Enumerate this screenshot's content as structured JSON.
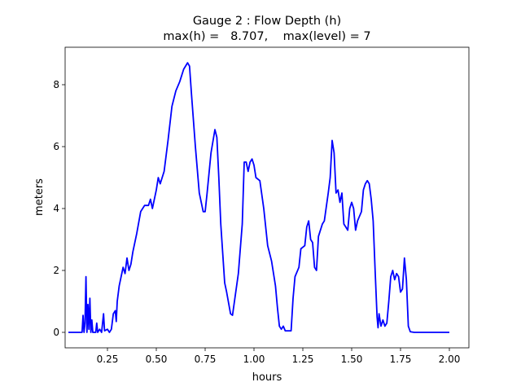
{
  "chart_data": {
    "type": "line",
    "title": "Gauge 2 : Flow Depth (h)",
    "subtitle": "max(h) =   8.707,    max(level) = 7",
    "xlabel": "hours",
    "ylabel": "meters",
    "color": "#0000ff",
    "xlim": [
      0.0333,
      2.1
    ],
    "ylim": [
      -0.5,
      9.21
    ],
    "xticks": [
      0.25,
      {
        "value": 0.5,
        "label": "0.50"
      },
      0.75,
      {
        "value": 1.0,
        "label": "1.00"
      },
      1.25,
      {
        "value": 1.5,
        "label": "1.50"
      },
      1.75,
      {
        "value": 2.0,
        "label": "2.00"
      }
    ],
    "yticks": [
      0,
      2,
      4,
      6,
      8
    ],
    "x": [
      0.05,
      0.12,
      0.125,
      0.13,
      0.135,
      0.14,
      0.145,
      0.15,
      0.155,
      0.16,
      0.165,
      0.17,
      0.175,
      0.19,
      0.195,
      0.2,
      0.21,
      0.22,
      0.23,
      0.235,
      0.25,
      0.26,
      0.27,
      0.28,
      0.29,
      0.295,
      0.3,
      0.31,
      0.32,
      0.33,
      0.34,
      0.35,
      0.36,
      0.37,
      0.38,
      0.4,
      0.42,
      0.44,
      0.46,
      0.47,
      0.48,
      0.5,
      0.51,
      0.52,
      0.54,
      0.56,
      0.58,
      0.6,
      0.62,
      0.64,
      0.66,
      0.67,
      0.68,
      0.7,
      0.72,
      0.74,
      0.75,
      0.76,
      0.78,
      0.8,
      0.81,
      0.82,
      0.83,
      0.85,
      0.86,
      0.88,
      0.89,
      0.9,
      0.92,
      0.94,
      0.95,
      0.96,
      0.97,
      0.98,
      0.99,
      1.0,
      1.01,
      1.03,
      1.05,
      1.07,
      1.09,
      1.11,
      1.12,
      1.13,
      1.14,
      1.15,
      1.16,
      1.19,
      1.2,
      1.21,
      1.23,
      1.24,
      1.26,
      1.27,
      1.28,
      1.29,
      1.3,
      1.31,
      1.32,
      1.33,
      1.35,
      1.36,
      1.38,
      1.39,
      1.4,
      1.41,
      1.42,
      1.43,
      1.44,
      1.45,
      1.46,
      1.47,
      1.48,
      1.49,
      1.5,
      1.51,
      1.52,
      1.53,
      1.55,
      1.56,
      1.57,
      1.58,
      1.59,
      1.6,
      1.61,
      1.62,
      1.63,
      1.635,
      1.64,
      1.65,
      1.66,
      1.67,
      1.68,
      1.69,
      1.7,
      1.71,
      1.72,
      1.73,
      1.74,
      1.75,
      1.76,
      1.77,
      1.78,
      1.79,
      1.8,
      1.82,
      2.0
    ],
    "values": [
      0,
      0,
      0.55,
      0,
      0.3,
      1.8,
      0,
      0.9,
      0.1,
      1.1,
      0,
      0.4,
      0,
      0,
      0.3,
      0,
      0.1,
      0,
      0.6,
      0.05,
      0.1,
      0,
      0.1,
      0.6,
      0.7,
      0.35,
      1.0,
      1.5,
      1.8,
      2.1,
      1.9,
      2.4,
      2.0,
      2.2,
      2.6,
      3.2,
      3.9,
      4.1,
      4.1,
      4.3,
      4.0,
      4.6,
      5.0,
      4.8,
      5.2,
      6.2,
      7.3,
      7.8,
      8.1,
      8.5,
      8.707,
      8.6,
      7.7,
      6.0,
      4.5,
      3.9,
      3.9,
      4.5,
      5.8,
      6.55,
      6.3,
      5.0,
      3.5,
      1.6,
      1.3,
      0.6,
      0.55,
      1.0,
      1.9,
      3.5,
      5.5,
      5.5,
      5.2,
      5.5,
      5.6,
      5.4,
      5.0,
      4.9,
      4.0,
      2.8,
      2.3,
      1.5,
      0.8,
      0.2,
      0.1,
      0.2,
      0.05,
      0.05,
      1.1,
      1.8,
      2.1,
      2.7,
      2.8,
      3.4,
      3.6,
      3.0,
      2.9,
      2.1,
      2.0,
      3.1,
      3.5,
      3.6,
      4.5,
      5.0,
      6.2,
      5.8,
      4.5,
      4.6,
      4.2,
      4.5,
      3.5,
      3.4,
      3.3,
      4.0,
      4.2,
      4.0,
      3.3,
      3.6,
      3.9,
      4.6,
      4.8,
      4.9,
      4.8,
      4.3,
      3.6,
      2.0,
      0.5,
      0.15,
      0.6,
      0.2,
      0.4,
      0.2,
      0.3,
      1.0,
      1.8,
      2.0,
      1.7,
      1.9,
      1.8,
      1.3,
      1.4,
      2.4,
      1.7,
      0.2,
      0.02,
      0,
      0
    ]
  }
}
